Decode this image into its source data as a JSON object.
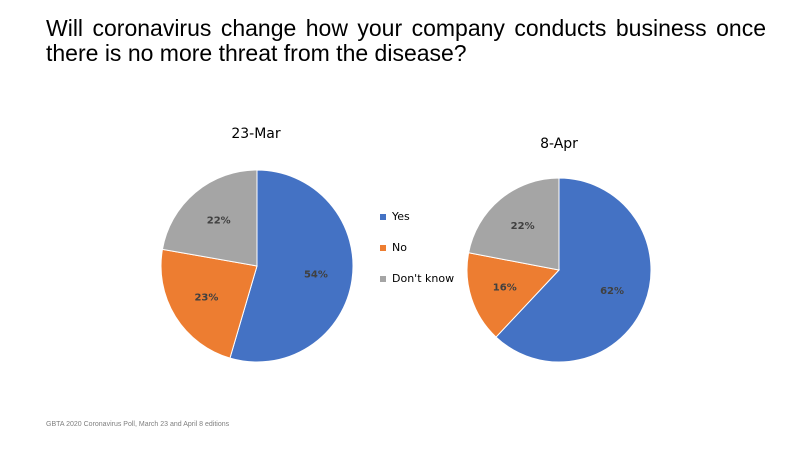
{
  "title": "Will coronavirus change how your company conducts business once there is no more threat from the disease?",
  "source": "GBTA 2020 Coronavirus Poll, March 23 and April 8 editions",
  "legend": [
    {
      "label": "Yes",
      "color": "#4472C4"
    },
    {
      "label": "No",
      "color": "#ED7D31"
    },
    {
      "label": "Don't know",
      "color": "#A5A5A5"
    }
  ],
  "chart_data": [
    {
      "type": "pie",
      "title": "23-Mar",
      "categories": [
        "Yes",
        "No",
        "Don't know"
      ],
      "values": [
        54,
        23,
        22
      ],
      "labels": [
        "54%",
        "23%",
        "22%"
      ]
    },
    {
      "type": "pie",
      "title": "8-Apr",
      "categories": [
        "Yes",
        "No",
        "Don't know"
      ],
      "values": [
        62,
        16,
        22
      ],
      "labels": [
        "62%",
        "16%",
        "22%"
      ]
    }
  ]
}
